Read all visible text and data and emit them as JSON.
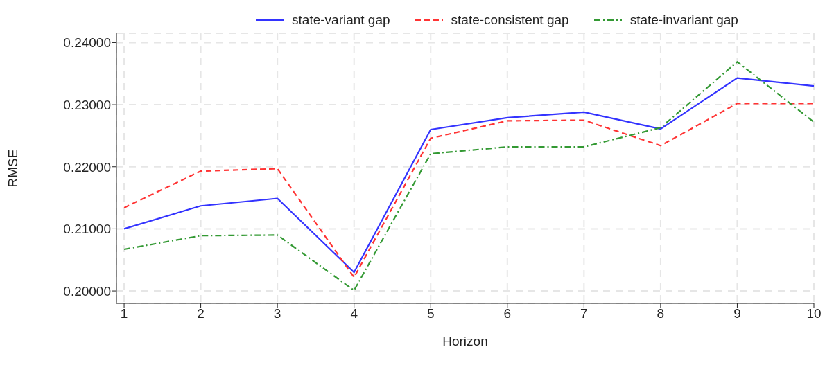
{
  "chart_data": {
    "type": "line",
    "xlabel": "Horizon",
    "ylabel": "RMSE",
    "x": [
      1,
      2,
      3,
      4,
      5,
      6,
      7,
      8,
      9,
      10
    ],
    "series": [
      {
        "name": "state-variant gap",
        "color": "#3333ff",
        "line_style": "solid",
        "values": [
          0.21,
          0.2137,
          0.2149,
          0.203,
          0.226,
          0.2279,
          0.2288,
          0.2261,
          0.2343,
          0.233
        ]
      },
      {
        "name": "state-consistent gap",
        "color": "#ff3333",
        "line_style": "dashed",
        "values": [
          0.2134,
          0.2193,
          0.2197,
          0.2022,
          0.2246,
          0.2274,
          0.2275,
          0.2234,
          0.2302,
          0.2302
        ]
      },
      {
        "name": "state-invariant gap",
        "color": "#339933",
        "line_style": "dashdot",
        "values": [
          0.2067,
          0.2089,
          0.209,
          0.2001,
          0.2221,
          0.2232,
          0.2232,
          0.2263,
          0.2369,
          0.2272
        ]
      }
    ],
    "xlim": [
      0.9,
      10
    ],
    "xticks": [
      1,
      2,
      3,
      4,
      5,
      6,
      7,
      8,
      9,
      10
    ],
    "ylim": [
      0.198,
      0.2415
    ],
    "yticks": [
      {
        "value": 0.2,
        "label": "0.20000"
      },
      {
        "value": 0.21,
        "label": "0.21000"
      },
      {
        "value": 0.22,
        "label": "0.22000"
      },
      {
        "value": 0.23,
        "label": "0.23000"
      },
      {
        "value": 0.24,
        "label": "0.24000"
      }
    ],
    "grid": true,
    "legend": "top",
    "marker": "none"
  }
}
